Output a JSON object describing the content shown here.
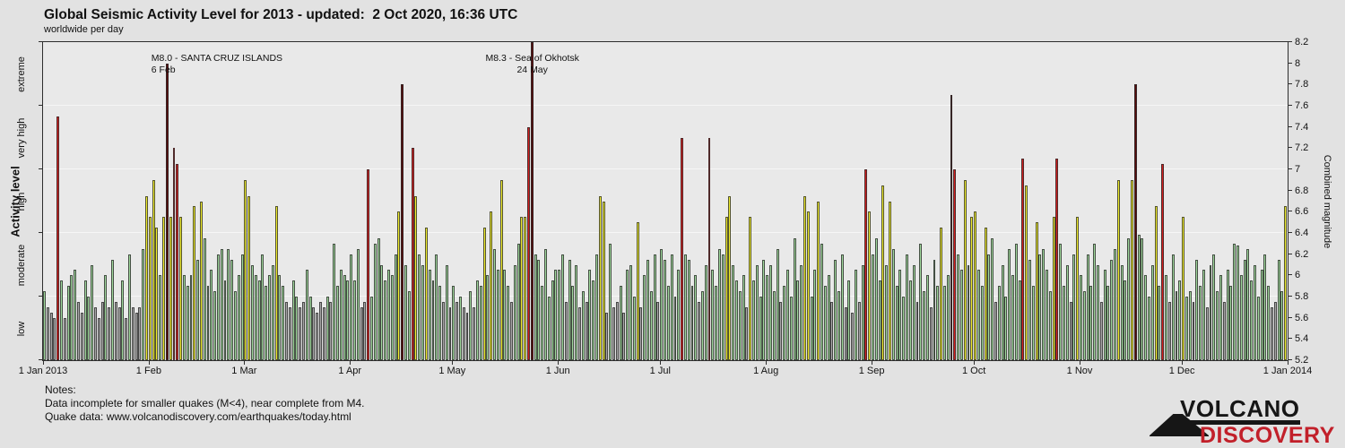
{
  "notes": {
    "heading": "Notes:",
    "line1": "Data incomplete for smaller quakes (M<4), near complete from M4.",
    "line2": "Quake data: www.volcanodiscovery.com/earthquakes/today.html"
  },
  "logo": {
    "top": "VOLCANO",
    "bottom": "DISCOVERY",
    "red": "#c2202a",
    "black": "#161616"
  },
  "chart_data": {
    "type": "bar",
    "title": "Global Seismic Activity Level for 2013 - updated:  2 Oct 2020, 16:36 UTC",
    "subtitle": "worldwide per day",
    "xlabel": "",
    "ylabel_left": "Activity level",
    "ylabel_right": "Combined magnitude",
    "ylim": [
      5.2,
      8.2
    ],
    "start_date": "2013-01-01",
    "days": 365,
    "grid": "horizontal band boundaries",
    "gridlines": [
      5.8,
      6.4,
      7.0,
      7.6
    ],
    "left_ticks": [
      5.2,
      5.8,
      6.4,
      7.0,
      7.6,
      8.2
    ],
    "right_ticks": [
      {
        "v": 5.2,
        "label": "5.2"
      },
      {
        "v": 5.4,
        "label": "5.4"
      },
      {
        "v": 5.6,
        "label": "5.6"
      },
      {
        "v": 5.8,
        "label": "5.8"
      },
      {
        "v": 6.0,
        "label": "6"
      },
      {
        "v": 6.2,
        "label": "6.2"
      },
      {
        "v": 6.4,
        "label": "6.4"
      },
      {
        "v": 6.6,
        "label": "6.6"
      },
      {
        "v": 6.8,
        "label": "6.8"
      },
      {
        "v": 7.0,
        "label": "7"
      },
      {
        "v": 7.2,
        "label": "7.2"
      },
      {
        "v": 7.4,
        "label": "7.4"
      },
      {
        "v": 7.6,
        "label": "7.6"
      },
      {
        "v": 7.8,
        "label": "7.8"
      },
      {
        "v": 8.0,
        "label": "8"
      },
      {
        "v": 8.2,
        "label": "8.2"
      }
    ],
    "bands": [
      {
        "label": "low",
        "from": 5.2,
        "to": 5.8
      },
      {
        "label": "moderate",
        "from": 5.8,
        "to": 6.4
      },
      {
        "label": "high",
        "from": 6.4,
        "to": 7.0
      },
      {
        "label": "very high",
        "from": 7.0,
        "to": 7.6
      },
      {
        "label": "extreme",
        "from": 7.6,
        "to": 8.2
      }
    ],
    "levels": [
      {
        "name": "low",
        "max": 5.8,
        "color": "#a8a8a8"
      },
      {
        "name": "moderate",
        "max": 6.4,
        "color": "#9fd89c"
      },
      {
        "name": "high",
        "max": 7.0,
        "color": "#f1ee2f"
      },
      {
        "name": "very-high",
        "max": 7.6,
        "color": "#d51f1f"
      },
      {
        "name": "extreme",
        "max": 99,
        "color": "#5a0a0a"
      }
    ],
    "x_ticks": [
      {
        "day": 0,
        "label": "1 Jan 2013"
      },
      {
        "day": 31,
        "label": "1 Feb"
      },
      {
        "day": 59,
        "label": "1 Mar"
      },
      {
        "day": 90,
        "label": "1 Apr"
      },
      {
        "day": 120,
        "label": "1 May"
      },
      {
        "day": 151,
        "label": "1 Jun"
      },
      {
        "day": 181,
        "label": "1 Jul"
      },
      {
        "day": 212,
        "label": "1 Aug"
      },
      {
        "day": 243,
        "label": "1 Sep"
      },
      {
        "day": 273,
        "label": "1 Oct"
      },
      {
        "day": 304,
        "label": "1 Nov"
      },
      {
        "day": 334,
        "label": "1 Dec"
      },
      {
        "day": 365,
        "label": "1 Jan 2014"
      }
    ],
    "annotations": [
      {
        "day": 36,
        "lines": [
          "M8.0 - SANTA CRUZ ISLANDS",
          "6 Feb"
        ],
        "align": "left"
      },
      {
        "day": 143,
        "lines": [
          "M8.3 - Sea of Okhotsk",
          "24 May"
        ],
        "align": "center"
      }
    ],
    "values": [
      5.85,
      5.7,
      5.65,
      5.6,
      7.5,
      5.95,
      5.6,
      5.9,
      6.0,
      6.05,
      5.75,
      5.65,
      5.95,
      5.8,
      6.1,
      5.7,
      5.6,
      5.75,
      6.0,
      5.7,
      6.15,
      5.75,
      5.7,
      5.95,
      5.6,
      6.2,
      5.7,
      5.65,
      5.7,
      6.25,
      6.75,
      6.55,
      6.9,
      6.45,
      6.0,
      6.55,
      8.0,
      6.55,
      7.2,
      7.05,
      6.55,
      6.0,
      5.9,
      6.0,
      6.65,
      6.15,
      6.7,
      6.35,
      5.9,
      6.05,
      5.85,
      6.2,
      6.25,
      5.95,
      6.25,
      6.15,
      5.85,
      6.0,
      6.2,
      6.9,
      6.75,
      6.1,
      6.0,
      5.95,
      6.2,
      5.9,
      6.0,
      6.1,
      6.65,
      6.0,
      5.9,
      5.75,
      5.7,
      5.95,
      5.8,
      5.7,
      5.75,
      6.05,
      5.8,
      5.7,
      5.65,
      5.75,
      5.7,
      5.8,
      5.75,
      6.3,
      5.9,
      6.05,
      6.0,
      5.95,
      6.2,
      5.95,
      6.25,
      5.7,
      5.75,
      7.0,
      5.8,
      6.3,
      6.35,
      6.1,
      5.95,
      6.05,
      6.0,
      6.2,
      6.6,
      7.8,
      6.1,
      5.85,
      7.2,
      6.75,
      6.2,
      6.1,
      6.45,
      6.05,
      5.95,
      6.2,
      5.9,
      5.75,
      6.1,
      5.7,
      5.9,
      5.75,
      5.8,
      5.7,
      5.65,
      5.85,
      5.7,
      5.95,
      5.9,
      6.45,
      6.0,
      6.6,
      6.25,
      6.05,
      6.9,
      6.05,
      5.9,
      5.75,
      6.1,
      6.3,
      6.55,
      6.55,
      7.4,
      8.3,
      6.2,
      6.15,
      5.9,
      6.25,
      5.8,
      5.95,
      6.05,
      6.05,
      6.2,
      5.75,
      6.15,
      5.9,
      6.1,
      5.7,
      5.85,
      5.75,
      6.05,
      5.95,
      6.2,
      6.75,
      6.7,
      5.65,
      6.3,
      5.7,
      5.75,
      5.9,
      5.65,
      6.05,
      6.1,
      5.8,
      6.5,
      5.7,
      6.0,
      6.15,
      5.85,
      6.2,
      5.75,
      6.25,
      6.15,
      5.9,
      6.2,
      5.8,
      6.05,
      7.3,
      6.2,
      6.15,
      5.9,
      6.0,
      5.75,
      5.85,
      6.1,
      7.3,
      6.05,
      5.9,
      6.25,
      6.2,
      6.55,
      6.75,
      6.1,
      5.95,
      5.85,
      6.0,
      5.7,
      6.55,
      5.95,
      6.1,
      5.8,
      6.15,
      6.0,
      6.1,
      5.85,
      6.25,
      5.75,
      5.9,
      6.05,
      5.8,
      6.35,
      5.95,
      6.1,
      6.75,
      6.6,
      5.8,
      6.05,
      6.7,
      6.3,
      5.9,
      6.0,
      5.75,
      6.15,
      5.85,
      6.2,
      5.7,
      5.95,
      5.65,
      6.05,
      5.75,
      6.1,
      7.0,
      6.6,
      6.2,
      6.35,
      5.95,
      6.85,
      6.1,
      6.7,
      6.25,
      5.9,
      6.05,
      5.8,
      6.2,
      5.95,
      6.1,
      5.75,
      6.3,
      5.85,
      6.0,
      5.7,
      6.15,
      5.9,
      6.45,
      5.9,
      6.0,
      7.7,
      7.0,
      6.2,
      6.05,
      6.9,
      6.1,
      6.55,
      6.6,
      6.05,
      5.9,
      6.45,
      6.2,
      6.35,
      5.75,
      5.9,
      6.1,
      5.8,
      6.25,
      6.0,
      6.3,
      5.95,
      7.1,
      6.85,
      6.15,
      5.9,
      6.5,
      6.2,
      6.25,
      6.05,
      5.85,
      6.55,
      7.1,
      6.3,
      5.9,
      6.1,
      5.75,
      6.2,
      6.55,
      6.0,
      5.85,
      6.2,
      5.9,
      6.3,
      6.1,
      5.75,
      6.05,
      5.9,
      6.15,
      6.25,
      6.9,
      6.1,
      5.95,
      6.35,
      6.9,
      7.8,
      6.38,
      6.35,
      6.0,
      5.8,
      6.1,
      6.65,
      5.9,
      7.05,
      6.0,
      5.75,
      6.2,
      5.85,
      5.95,
      6.55,
      5.8,
      5.85,
      5.75,
      6.15,
      5.9,
      6.05,
      5.7,
      6.1,
      6.2,
      5.85,
      6.0,
      5.75,
      6.05,
      5.9,
      6.3,
      6.28,
      6.0,
      6.15,
      6.25,
      5.95,
      6.1,
      5.8,
      6.05,
      6.2,
      5.9,
      5.7,
      5.75,
      6.15,
      5.85,
      6.65
    ]
  }
}
